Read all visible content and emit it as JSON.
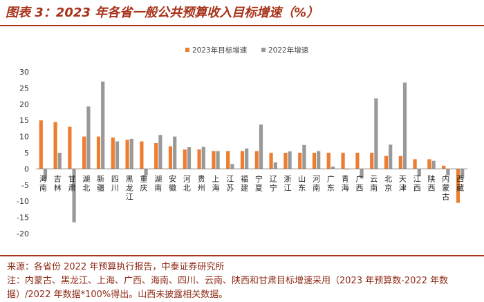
{
  "header": {
    "title": "图表 3：2023 年各省一般公共预算收入目标增速（%）"
  },
  "footer": {
    "source": "来源：各省份 2022 年预算执行报告，中泰证券研究所",
    "note": "注：内蒙古、黑龙江、上海、广西、海南、四川、云南、陕西和甘肃目标增速采用（2023 年预算数-2022 年数据）/2022 年数据*100%得出。山西未披露相关数据。"
  },
  "chart_data": {
    "type": "bar",
    "title": "",
    "xlabel": "",
    "ylabel": "",
    "ylim": [
      -20,
      30
    ],
    "yticks": [
      -20,
      -15,
      -10,
      -5,
      0,
      5,
      10,
      15,
      20,
      25,
      30
    ],
    "legend_position": "top-center",
    "grid": false,
    "colors": {
      "2023": "#ed7d31",
      "2022": "#999999"
    },
    "categories": [
      "海南",
      "吉林",
      "甘肃",
      "湖北",
      "新疆",
      "四川",
      "黑龙江",
      "重庆",
      "湖南",
      "安徽",
      "河北",
      "贵州",
      "上海",
      "江苏",
      "福建",
      "宁夏",
      "辽宁",
      "浙江",
      "山东",
      "河南",
      "广东",
      "青海",
      "广西",
      "云南",
      "北京",
      "天津",
      "江西",
      "陕西",
      "内蒙古",
      "西藏"
    ],
    "series": [
      {
        "name": "2023年目标增速",
        "values": [
          15.0,
          14.5,
          13.0,
          10.0,
          10.0,
          9.7,
          9.0,
          8.5,
          8.0,
          7.0,
          6.0,
          6.0,
          5.5,
          5.5,
          5.5,
          5.5,
          5.0,
          5.0,
          5.0,
          5.0,
          5.0,
          5.0,
          5.0,
          5.0,
          4.0,
          4.0,
          3.0,
          3.0,
          1.0,
          -10.5
        ]
      },
      {
        "name": "2022年增速",
        "values": [
          -3.0,
          5.0,
          -16.5,
          19.3,
          27.0,
          8.5,
          9.3,
          -2.0,
          10.5,
          10.0,
          6.7,
          6.8,
          5.5,
          1.5,
          6.3,
          13.7,
          2.0,
          5.4,
          7.4,
          5.5,
          0.7,
          -0.2,
          -3.0,
          21.8,
          7.5,
          26.7,
          -2.3,
          2.5,
          -2.0,
          -3.0
        ]
      }
    ]
  }
}
